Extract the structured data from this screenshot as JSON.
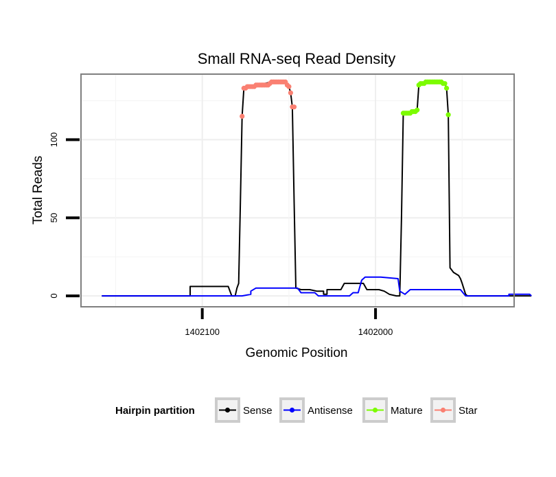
{
  "chart_data": {
    "type": "line",
    "title": "Small RNA-seq Read Density",
    "xlabel": "Genomic Position",
    "ylabel": "Total Reads",
    "x_reversed": true,
    "xlim": [
      1402170,
      1401920
    ],
    "ylim": [
      -7,
      142
    ],
    "x_ticks": [
      {
        "value": 1402100,
        "label": "1402100"
      },
      {
        "value": 1402000,
        "label": "1402000"
      }
    ],
    "y_ticks": [
      {
        "value": 0,
        "label": "0"
      },
      {
        "value": 50,
        "label": "50"
      },
      {
        "value": 100,
        "label": "100"
      }
    ],
    "grid": true,
    "legend": {
      "title": "Hairpin partition",
      "position": "bottom",
      "entries": [
        {
          "name": "Sense",
          "color": "#000000"
        },
        {
          "name": "Antisense",
          "color": "#0000ff"
        },
        {
          "name": "Mature",
          "color": "#7cfc00"
        },
        {
          "name": "Star",
          "color": "#fa8072"
        }
      ]
    },
    "series": [
      {
        "name": "Sense",
        "color": "#000000",
        "kind": "line",
        "points": [
          [
            1402158,
            0
          ],
          [
            1402107,
            0
          ],
          [
            1402107,
            6
          ],
          [
            1402085,
            6
          ],
          [
            1402083,
            0
          ],
          [
            1402081,
            0
          ],
          [
            1402080,
            5
          ],
          [
            1402079,
            8
          ],
          [
            1402078,
            60
          ],
          [
            1402077,
            115
          ],
          [
            1402076,
            133
          ],
          [
            1402072,
            134
          ],
          [
            1402068,
            135
          ],
          [
            1402060,
            137
          ],
          [
            1402052,
            137
          ],
          [
            1402050,
            134
          ],
          [
            1402049,
            130
          ],
          [
            1402048,
            121
          ],
          [
            1402047,
            60
          ],
          [
            1402046,
            5
          ],
          [
            1402043,
            4
          ],
          [
            1402038,
            4
          ],
          [
            1402034,
            3
          ],
          [
            1402030,
            3
          ],
          [
            1402030,
            1
          ],
          [
            1402028,
            1
          ],
          [
            1402028,
            4
          ],
          [
            1402020,
            4
          ],
          [
            1402018,
            8
          ],
          [
            1402007,
            8
          ],
          [
            1402005,
            4
          ],
          [
            1401998,
            4
          ],
          [
            1401995,
            3
          ],
          [
            1401992,
            1
          ],
          [
            1401988,
            0
          ],
          [
            1401986,
            0
          ],
          [
            1401985,
            50
          ],
          [
            1401984,
            117
          ],
          [
            1401982,
            117
          ],
          [
            1401978,
            118
          ],
          [
            1401976,
            119
          ],
          [
            1401975,
            135
          ],
          [
            1401972,
            136
          ],
          [
            1401968,
            137
          ],
          [
            1401962,
            137
          ],
          [
            1401960,
            136
          ],
          [
            1401959,
            133
          ],
          [
            1401958,
            116
          ],
          [
            1401957,
            18
          ],
          [
            1401955,
            15
          ],
          [
            1401952,
            13
          ],
          [
            1401951,
            11
          ],
          [
            1401950,
            8
          ],
          [
            1401948,
            1
          ],
          [
            1401947,
            0
          ],
          [
            1401910,
            0
          ]
        ]
      },
      {
        "name": "Antisense",
        "color": "#0000ff",
        "kind": "line",
        "points": [
          [
            1402158,
            0
          ],
          [
            1402088,
            0
          ],
          [
            1402077,
            0
          ],
          [
            1402072,
            1
          ],
          [
            1402072,
            3
          ],
          [
            1402069,
            5
          ],
          [
            1402045,
            5
          ],
          [
            1402043,
            2
          ],
          [
            1402035,
            2
          ],
          [
            1402033,
            0
          ],
          [
            1402015,
            0
          ],
          [
            1402013,
            2
          ],
          [
            1402010,
            2
          ],
          [
            1402008,
            10
          ],
          [
            1402006,
            12
          ],
          [
            1401997,
            12
          ],
          [
            1401987,
            11
          ],
          [
            1401986,
            3
          ],
          [
            1401983,
            1
          ],
          [
            1401980,
            4
          ],
          [
            1401957,
            4
          ],
          [
            1401951,
            4
          ],
          [
            1401948,
            0
          ],
          [
            1401923,
            0
          ],
          [
            1401923,
            1
          ],
          [
            1401911,
            1
          ],
          [
            1401910,
            0
          ]
        ]
      },
      {
        "name": "Star",
        "color": "#fa8072",
        "kind": "points",
        "points": [
          [
            1402077,
            115
          ],
          [
            1402076,
            133
          ],
          [
            1402075,
            133
          ],
          [
            1402074,
            134
          ],
          [
            1402073,
            134
          ],
          [
            1402072,
            134
          ],
          [
            1402071,
            134
          ],
          [
            1402070,
            134
          ],
          [
            1402069,
            135
          ],
          [
            1402068,
            135
          ],
          [
            1402067,
            135
          ],
          [
            1402066,
            135
          ],
          [
            1402065,
            135
          ],
          [
            1402064,
            135
          ],
          [
            1402063,
            135
          ],
          [
            1402062,
            135
          ],
          [
            1402061,
            136
          ],
          [
            1402060,
            137
          ],
          [
            1402059,
            137
          ],
          [
            1402058,
            137
          ],
          [
            1402057,
            137
          ],
          [
            1402056,
            137
          ],
          [
            1402055,
            137
          ],
          [
            1402054,
            137
          ],
          [
            1402053,
            137
          ],
          [
            1402052,
            137
          ],
          [
            1402051,
            135
          ],
          [
            1402050,
            134
          ],
          [
            1402049,
            130
          ],
          [
            1402048,
            121
          ],
          [
            1402047,
            121
          ]
        ]
      },
      {
        "name": "Mature",
        "color": "#7cfc00",
        "kind": "points",
        "points": [
          [
            1401984,
            117
          ],
          [
            1401983,
            117
          ],
          [
            1401982,
            117
          ],
          [
            1401981,
            117
          ],
          [
            1401980,
            117
          ],
          [
            1401979,
            118
          ],
          [
            1401978,
            118
          ],
          [
            1401977,
            118
          ],
          [
            1401976,
            119
          ],
          [
            1401975,
            135
          ],
          [
            1401974,
            136
          ],
          [
            1401973,
            136
          ],
          [
            1401972,
            136
          ],
          [
            1401971,
            137
          ],
          [
            1401970,
            137
          ],
          [
            1401969,
            137
          ],
          [
            1401968,
            137
          ],
          [
            1401967,
            137
          ],
          [
            1401966,
            137
          ],
          [
            1401965,
            137
          ],
          [
            1401964,
            137
          ],
          [
            1401963,
            137
          ],
          [
            1401962,
            137
          ],
          [
            1401961,
            136
          ],
          [
            1401960,
            136
          ],
          [
            1401959,
            133
          ],
          [
            1401958,
            116
          ]
        ]
      }
    ]
  }
}
